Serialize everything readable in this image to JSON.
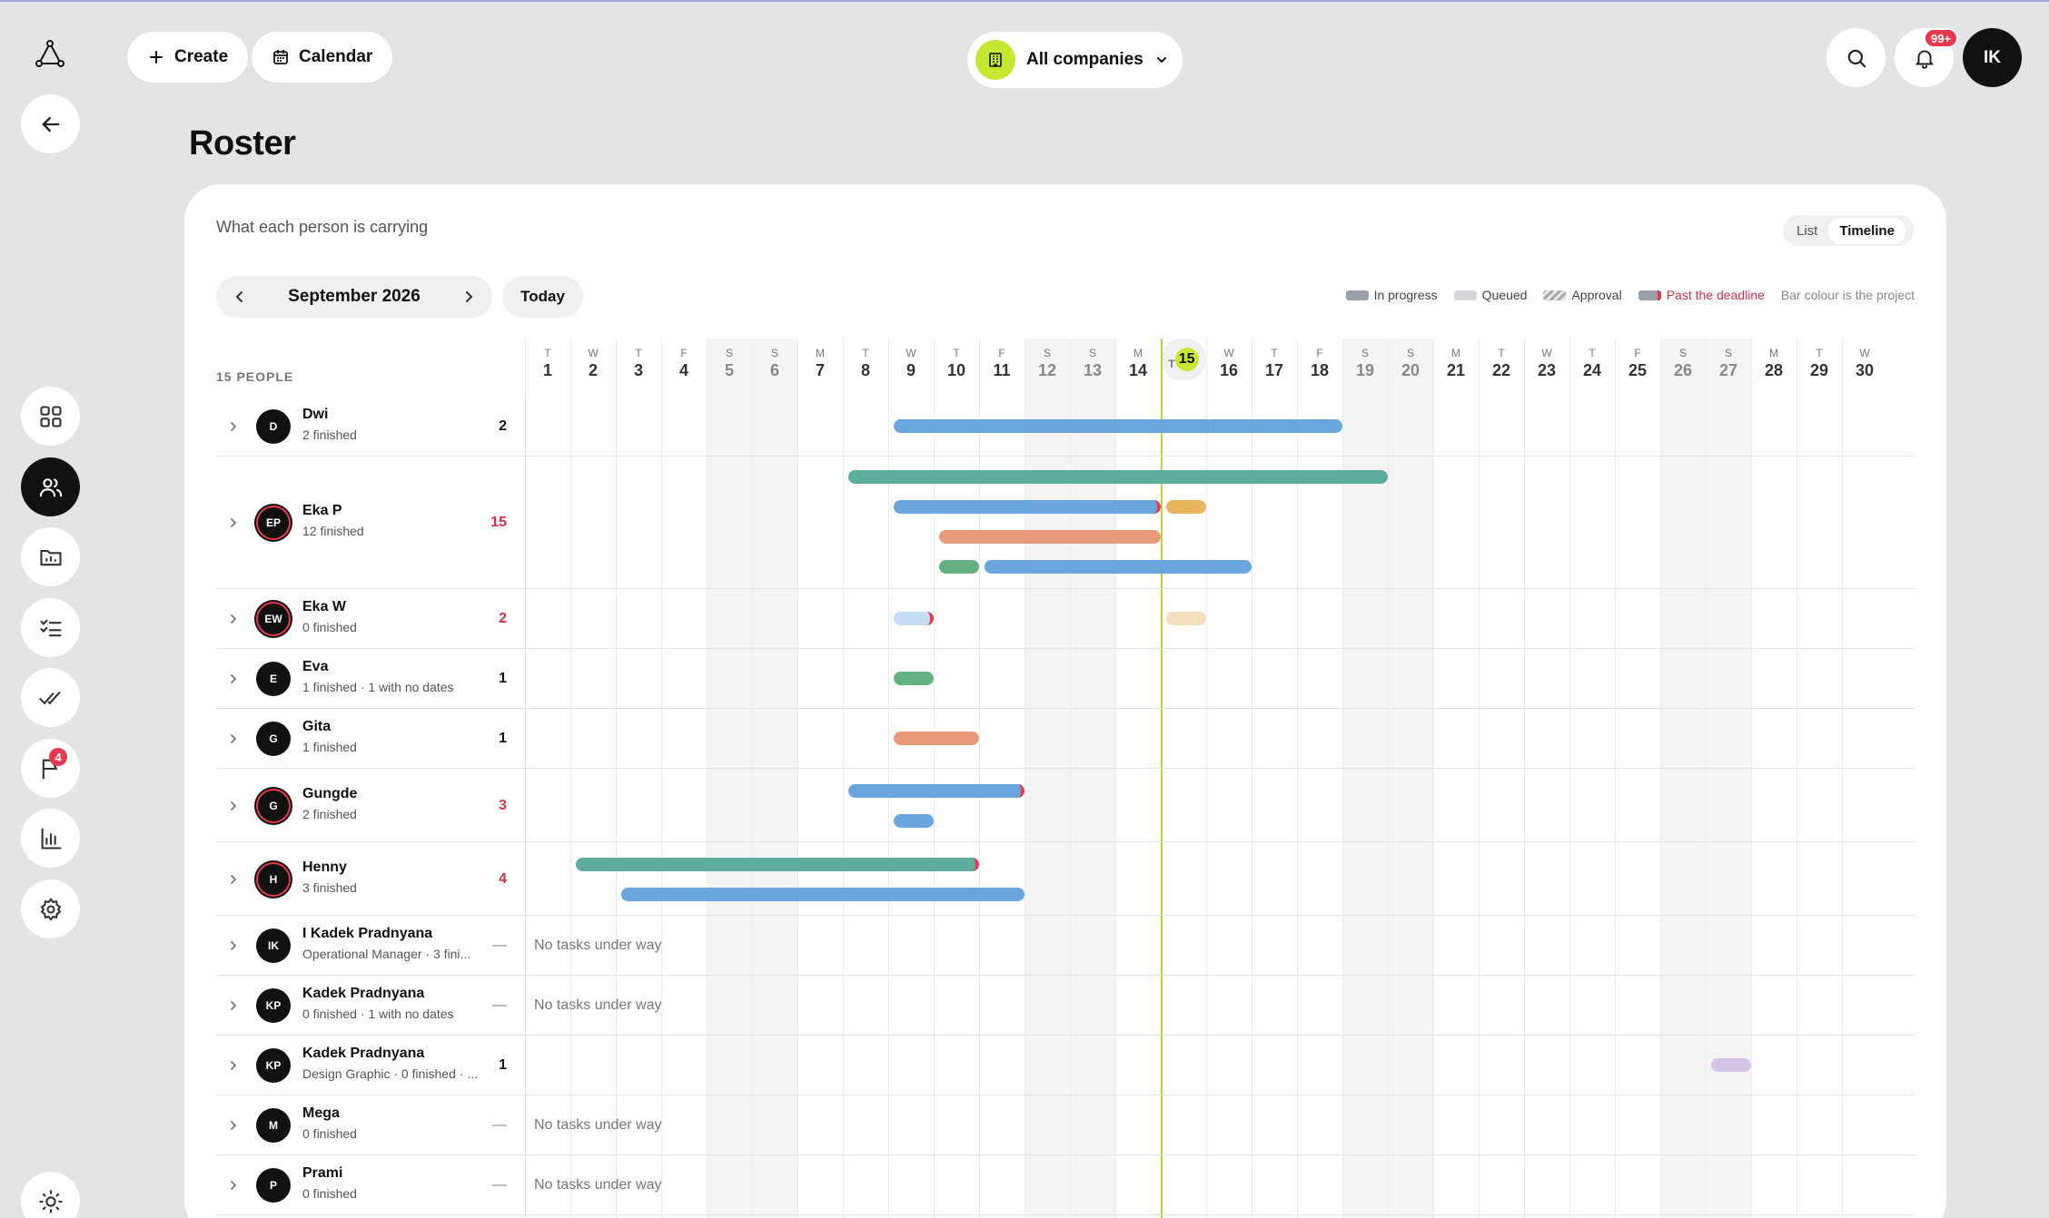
{
  "header": {
    "create_label": "Create",
    "calendar_label": "Calendar",
    "company_label": "All companies",
    "notif_badge": "99+",
    "user_initials": "IK"
  },
  "sidebar": {
    "flag_badge": "4",
    "items": [
      "dashboard-icon",
      "people-icon",
      "folder-chart-icon",
      "checklist-icon",
      "double-check-icon",
      "flag-icon",
      "bar-chart-icon",
      "gear-icon"
    ]
  },
  "page": {
    "title": "Roster",
    "subtitle": "What each person is carrying",
    "view_list": "List",
    "view_timeline": "Timeline",
    "month": "September 2026",
    "today_label": "Today",
    "people_count": "15 PEOPLE",
    "no_tasks": "No tasks under way"
  },
  "legend": {
    "in_progress": "In progress",
    "queued": "Queued",
    "approval": "Approval",
    "past_deadline": "Past the deadline",
    "note": "Bar colour is the project"
  },
  "colors": {
    "accent": "#c5e833",
    "danger": "#e63950"
  },
  "days": [
    {
      "w": "T",
      "d": "1"
    },
    {
      "w": "W",
      "d": "2"
    },
    {
      "w": "T",
      "d": "3"
    },
    {
      "w": "F",
      "d": "4"
    },
    {
      "w": "S",
      "d": "5"
    },
    {
      "w": "S",
      "d": "6"
    },
    {
      "w": "M",
      "d": "7"
    },
    {
      "w": "T",
      "d": "8"
    },
    {
      "w": "W",
      "d": "9"
    },
    {
      "w": "T",
      "d": "10"
    },
    {
      "w": "F",
      "d": "11"
    },
    {
      "w": "S",
      "d": "12"
    },
    {
      "w": "S",
      "d": "13"
    },
    {
      "w": "M",
      "d": "14"
    },
    {
      "w": "T",
      "d": "15"
    },
    {
      "w": "W",
      "d": "16"
    },
    {
      "w": "T",
      "d": "17"
    },
    {
      "w": "F",
      "d": "18"
    },
    {
      "w": "S",
      "d": "19"
    },
    {
      "w": "S",
      "d": "20"
    },
    {
      "w": "M",
      "d": "21"
    },
    {
      "w": "T",
      "d": "22"
    },
    {
      "w": "W",
      "d": "23"
    },
    {
      "w": "T",
      "d": "24"
    },
    {
      "w": "F",
      "d": "25"
    },
    {
      "w": "S",
      "d": "26"
    },
    {
      "w": "S",
      "d": "27"
    },
    {
      "w": "M",
      "d": "28"
    },
    {
      "w": "T",
      "d": "29"
    },
    {
      "w": "W",
      "d": "30"
    }
  ],
  "today_day": 15,
  "people": [
    {
      "initials": "D",
      "name": "Dwi",
      "sub": "2 finished",
      "count": "2",
      "over": false,
      "bars": [
        {
          "start": 9,
          "end": 18,
          "color": "blue"
        }
      ]
    },
    {
      "initials": "EP",
      "name": "Eka P",
      "sub": "12 finished",
      "count": "15",
      "over": true,
      "bars": [
        {
          "start": 8,
          "end": 19,
          "color": "teal"
        },
        {
          "start": 9,
          "end": 14,
          "color": "blue",
          "past": true
        },
        {
          "start": 15,
          "end": 15,
          "color": "gold"
        },
        {
          "start": 10,
          "end": 14,
          "color": "orange"
        },
        {
          "start": 10,
          "end": 10,
          "color": "green"
        },
        {
          "start": 11,
          "end": 16,
          "color": "blue"
        }
      ]
    },
    {
      "initials": "EW",
      "name": "Eka W",
      "sub": "0 finished",
      "count": "2",
      "over": true,
      "bars": [
        {
          "start": 9,
          "end": 9,
          "color": "lblue",
          "past": true
        },
        {
          "start": 15,
          "end": 15,
          "color": "cream"
        }
      ]
    },
    {
      "initials": "E",
      "name": "Eva",
      "sub": "1 finished · 1 with no dates",
      "count": "1",
      "over": false,
      "bars": [
        {
          "start": 9,
          "end": 9,
          "color": "green"
        }
      ]
    },
    {
      "initials": "G",
      "name": "Gita",
      "sub": "1 finished",
      "count": "1",
      "over": false,
      "bars": [
        {
          "start": 9,
          "end": 10,
          "color": "orange"
        }
      ]
    },
    {
      "initials": "G",
      "name": "Gungde",
      "sub": "2 finished",
      "count": "3",
      "over": true,
      "bars": [
        {
          "start": 8,
          "end": 11,
          "color": "blue",
          "past": true
        },
        {
          "start": 9,
          "end": 9,
          "color": "blue"
        }
      ]
    },
    {
      "initials": "H",
      "name": "Henny",
      "sub": "3 finished",
      "count": "4",
      "over": true,
      "bars": [
        {
          "start": 2,
          "end": 10,
          "color": "teal",
          "past": true
        },
        {
          "start": 3,
          "end": 11,
          "color": "blue"
        }
      ]
    },
    {
      "initials": "IK",
      "name": "I Kadek Pradnyana",
      "sub": "Operational Manager · 3 fini...",
      "count": "—",
      "over": false,
      "bars": []
    },
    {
      "initials": "KP",
      "name": "Kadek Pradnyana",
      "sub": "0 finished · 1 with no dates",
      "count": "—",
      "over": false,
      "bars": []
    },
    {
      "initials": "KP",
      "name": "Kadek Pradnyana",
      "sub": "Design Graphic · 0 finished · ...",
      "count": "1",
      "over": false,
      "bars": [
        {
          "start": 27,
          "end": 27,
          "color": "lav"
        }
      ]
    },
    {
      "initials": "M",
      "name": "Mega",
      "sub": "0 finished",
      "count": "—",
      "over": false,
      "bars": []
    },
    {
      "initials": "P",
      "name": "Prami",
      "sub": "0 finished",
      "count": "—",
      "over": false,
      "bars": []
    }
  ]
}
